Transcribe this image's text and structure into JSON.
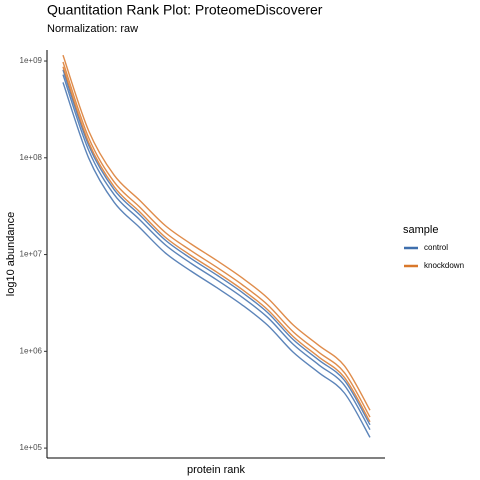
{
  "chart_data": {
    "type": "line",
    "title": "Quantitation Rank Plot: ProteomeDiscoverer",
    "subtitle": "Normalization: raw",
    "x_label": "protein rank",
    "y_label": "log10 abundance",
    "legend_title": "sample",
    "legend": "right",
    "log_y": true,
    "grid": false,
    "ylim": [
      79000,
      1300000000
    ],
    "yticks": [
      {
        "value": 100000,
        "label": "1e+05"
      },
      {
        "value": 1000000,
        "label": "1e+06"
      },
      {
        "value": 10000000,
        "label": "1e+07"
      },
      {
        "value": 100000000,
        "label": "1e+08"
      },
      {
        "value": 1000000000,
        "label": "1e+09"
      }
    ],
    "series": [
      {
        "name": "control",
        "color": "#3f6fad",
        "values": [
          602000000,
          100000000,
          34700000,
          19000000,
          10400000,
          6760000,
          4570000,
          3020000,
          1860000,
          978000,
          602000,
          371000,
          129000
        ]
      },
      {
        "name": "control",
        "color": "#3f6fad",
        "values": [
          724000000,
          120000000,
          41700000,
          22900000,
          12600000,
          8130000,
          5500000,
          3630000,
          2240000,
          1180000,
          724000,
          446000,
          155000
        ]
      },
      {
        "name": "control",
        "color": "#3f6fad",
        "values": [
          813000000,
          135000000,
          46800000,
          25700000,
          14100000,
          9120000,
          6170000,
          4070000,
          2510000,
          1320000,
          813000,
          501000,
          174000
        ]
      },
      {
        "name": "knockdown",
        "color": "#d9782b",
        "values": [
          872000000,
          145000000,
          50200000,
          27600000,
          15100000,
          9780000,
          6610000,
          4360000,
          2690000,
          1420000,
          872000,
          537000,
          187000
        ]
      },
      {
        "name": "knockdown",
        "color": "#d9782b",
        "values": [
          977000000,
          162000000,
          56300000,
          30900000,
          16900000,
          11000000,
          7420000,
          4890000,
          3020000,
          1590000,
          977000,
          602000,
          209000
        ]
      },
      {
        "name": "knockdown",
        "color": "#d9782b",
        "values": [
          1150000000,
          191000000,
          66100000,
          36300000,
          19900000,
          12900000,
          8720000,
          5750000,
          3550000,
          1870000,
          1150000,
          708000,
          246000
        ]
      }
    ]
  }
}
